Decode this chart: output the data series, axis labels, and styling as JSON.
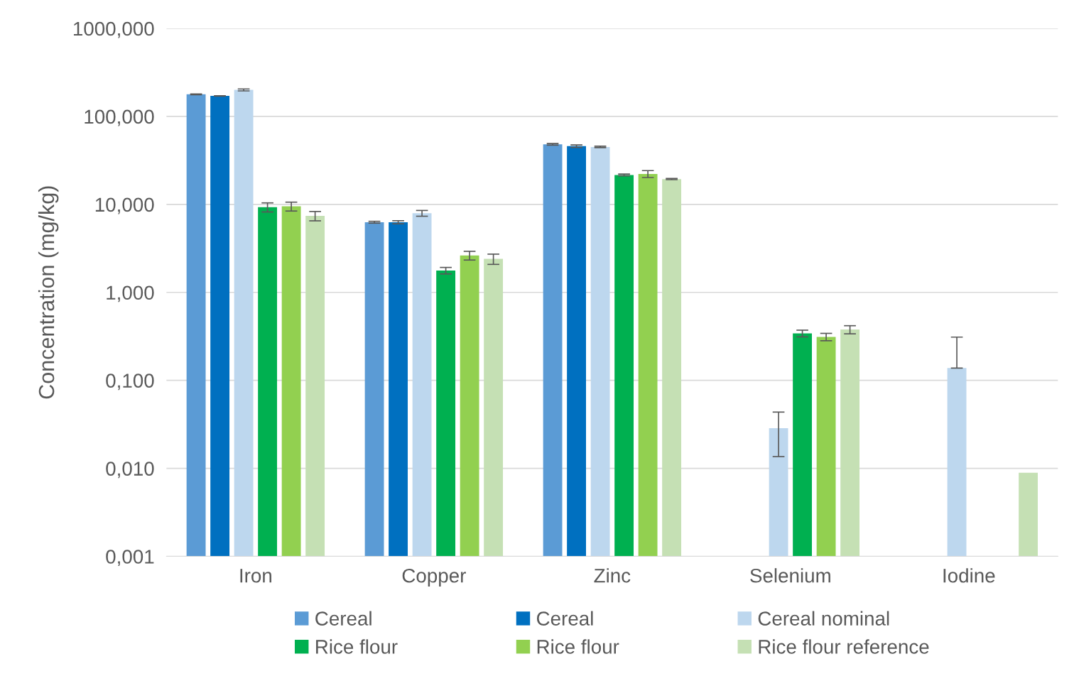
{
  "chart_data": {
    "type": "bar",
    "ylabel": "Concentration (mg/kg)",
    "log": true,
    "categories": [
      "Iron",
      "Copper",
      "Zinc",
      "Selenium",
      "Iodine"
    ],
    "ylim": [
      0.001,
      1000
    ],
    "yticks": [
      {
        "value": 0.001,
        "label": "0,001"
      },
      {
        "value": 0.01,
        "label": "0,010"
      },
      {
        "value": 0.1,
        "label": "0,100"
      },
      {
        "value": 1,
        "label": "1,000"
      },
      {
        "value": 10,
        "label": "10,000"
      },
      {
        "value": 100,
        "label": "100,000"
      },
      {
        "value": 1000,
        "label": "1000,000"
      }
    ],
    "grid": "y",
    "legend": "bottom",
    "series": [
      {
        "name": "Cereal",
        "color": "#5b9bd5",
        "values": [
          178,
          6.27,
          48.2,
          null,
          null
        ],
        "errors": [
          2,
          0.15,
          1,
          null,
          null
        ]
      },
      {
        "name": "Cereal",
        "color": "#0070c0",
        "values": [
          171,
          6.27,
          45.9,
          null,
          null
        ],
        "errors": [
          1,
          0.25,
          1.5,
          null,
          null
        ]
      },
      {
        "name": "Cereal nominal",
        "color": "#bdd7ee",
        "values": [
          200,
          7.93,
          45.0,
          0.0286,
          0.138
        ],
        "errors": [
          5,
          0.6,
          0.8,
          0.015,
          [
            0.138,
            0.31
          ]
        ]
      },
      {
        "name": "Rice flour",
        "color": "#00b050",
        "values": [
          9.3,
          1.77,
          21.6,
          0.342,
          null
        ],
        "errors": [
          1.1,
          0.15,
          0.5,
          0.03,
          null
        ]
      },
      {
        "name": "Rice flour",
        "color": "#92d050",
        "values": [
          9.5,
          2.63,
          22.2,
          0.312,
          null
        ],
        "errors": [
          1.1,
          0.3,
          2,
          0.03,
          null
        ]
      },
      {
        "name": "Rice flour reference",
        "color": "#c5e0b4",
        "values": [
          7.4,
          2.4,
          19.4,
          0.378,
          0.0089
        ],
        "errors": [
          0.9,
          0.32,
          0.3,
          0.04,
          null
        ]
      }
    ]
  }
}
